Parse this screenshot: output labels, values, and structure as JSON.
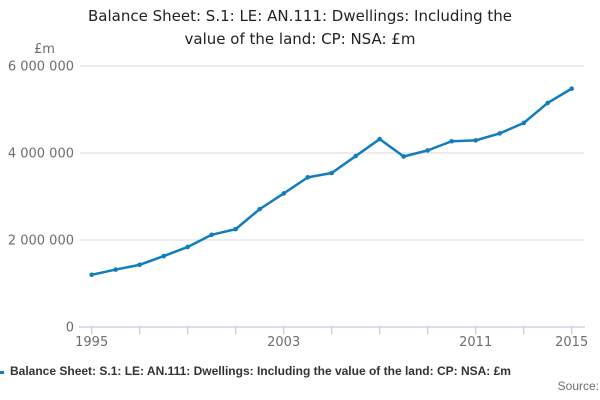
{
  "title": {
    "lines": [
      "Balance Sheet: S.1: LE: AN.111: Dwellings: Including the",
      "value of the land: CP: NSA: £m"
    ]
  },
  "chart_data": {
    "type": "line",
    "title": "Balance Sheet: S.1: LE: AN.111: Dwellings: Including the value of the land: CP: NSA: £m",
    "unit_label": "£m",
    "xlabel": "",
    "ylabel": "£m",
    "xlim": [
      1995,
      2015
    ],
    "ylim": [
      0,
      6000000
    ],
    "grid": true,
    "x": [
      1995,
      1996,
      1997,
      1998,
      1999,
      2000,
      2001,
      2002,
      2003,
      2004,
      2005,
      2006,
      2007,
      2008,
      2009,
      2010,
      2011,
      2012,
      2013,
      2014,
      2015
    ],
    "series": [
      {
        "name": "Balance Sheet: S.1: LE: AN.111: Dwellings: Including the value of the land: CP: NSA: £m",
        "values": [
          1200000,
          1320000,
          1430000,
          1630000,
          1840000,
          2120000,
          2250000,
          2710000,
          3070000,
          3440000,
          3540000,
          3930000,
          4320000,
          3920000,
          4060000,
          4270000,
          4290000,
          4450000,
          4690000,
          5150000,
          5480000
        ]
      }
    ],
    "y_ticks": [
      {
        "value": 0,
        "label": "0"
      },
      {
        "value": 2000000,
        "label": "2 000 000"
      },
      {
        "value": 4000000,
        "label": "4 000 000"
      },
      {
        "value": 6000000,
        "label": "6 000 000"
      }
    ],
    "x_tick_years": [
      1995,
      1997,
      1999,
      2001,
      2003,
      2005,
      2007,
      2009,
      2011,
      2013,
      2015
    ],
    "x_labeled_years": [
      1995,
      2003,
      2011,
      2015
    ],
    "line_color": "#117dbe",
    "axis_color": "#b4c0d6",
    "grid_color": "#d9d9d9",
    "tick_label_color": "#6e6e6e"
  },
  "legend": {
    "label": "Balance Sheet: S.1: LE: AN.111: Dwellings: Including the value of the land: CP: NSA: £m"
  },
  "footer": {
    "source_label": "Source:"
  }
}
